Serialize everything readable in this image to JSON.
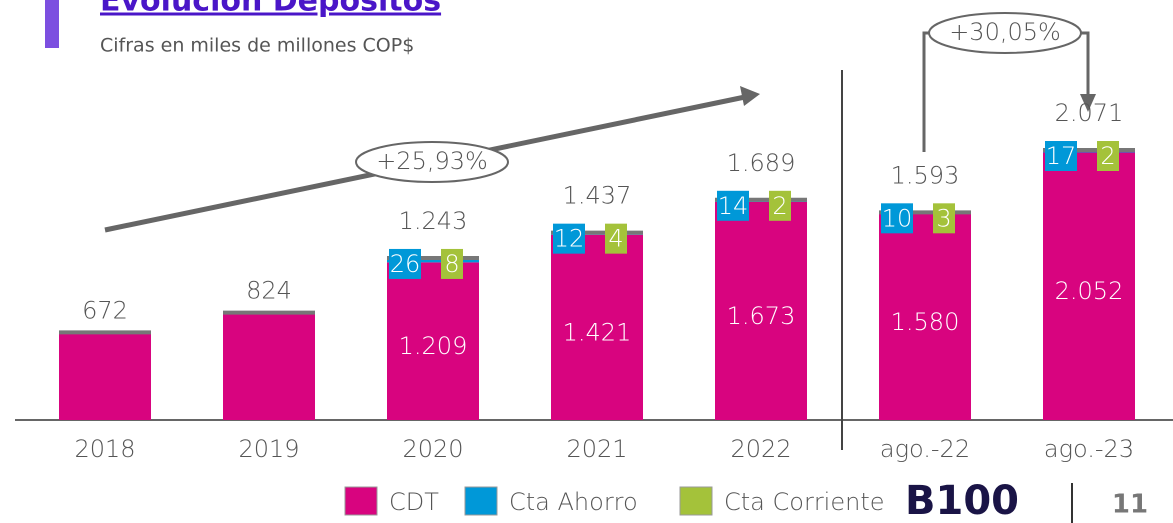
{
  "title": "Evolución Depósitos",
  "subtitle": "Cifras en miles de millones COP$",
  "logo": "B100",
  "page_number": "11",
  "chart_data": {
    "type": "bar",
    "stacked": true,
    "categories": [
      "2018",
      "2019",
      "2020",
      "2021",
      "2022",
      "ago.-22",
      "ago.-23"
    ],
    "series": [
      {
        "name": "CDT",
        "color": "#d8047f",
        "values": [
          672,
          824,
          1209,
          1421,
          1673,
          1580,
          2052
        ],
        "value_labels": [
          null,
          null,
          "1.209",
          "1.421",
          "1.673",
          "1.580",
          "2.052"
        ]
      },
      {
        "name": "Cta Ahorro",
        "color": "#0098d8",
        "values": [
          null,
          null,
          26,
          12,
          14,
          10,
          17
        ]
      },
      {
        "name": "Cta Corriente",
        "color": "#a4c23a",
        "values": [
          null,
          null,
          8,
          4,
          2,
          3,
          2
        ]
      }
    ],
    "totals": {
      "values": [
        672,
        824,
        1243,
        1437,
        1689,
        1593,
        2071
      ],
      "value_labels": [
        "672",
        "824",
        "1.243",
        "1.437",
        "1.689",
        "1.593",
        "2.071"
      ]
    },
    "annotations": [
      "+25,93%",
      "+30,05%"
    ]
  }
}
